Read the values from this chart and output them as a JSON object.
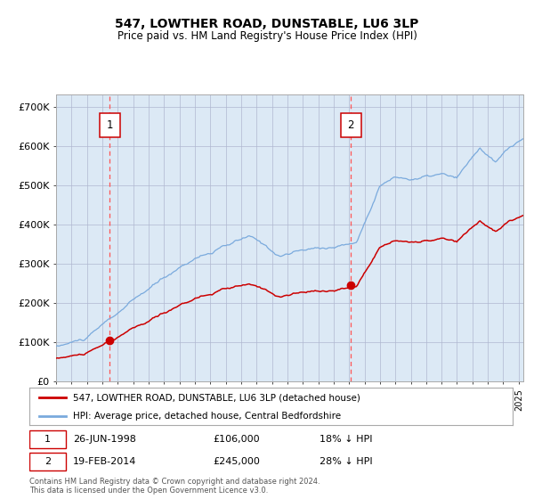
{
  "title": "547, LOWTHER ROAD, DUNSTABLE, LU6 3LP",
  "subtitle": "Price paid vs. HM Land Registry's House Price Index (HPI)",
  "ylabel_ticks": [
    "£0",
    "£100K",
    "£200K",
    "£300K",
    "£400K",
    "£500K",
    "£600K",
    "£700K"
  ],
  "ytick_values": [
    0,
    100000,
    200000,
    300000,
    400000,
    500000,
    600000,
    700000
  ],
  "ylim": [
    0,
    730000
  ],
  "xlim": [
    1995,
    2025.3
  ],
  "background_color": "#ffffff",
  "plot_bg_color": "#dce9f5",
  "grid_color": "#b0b8d0",
  "red_line_color": "#cc0000",
  "blue_line_color": "#7aaadd",
  "vline_color": "#ff5555",
  "sale1_x": 1998.48,
  "sale1_y": 106000,
  "sale2_x": 2014.12,
  "sale2_y": 245000,
  "legend_line1": "547, LOWTHER ROAD, DUNSTABLE, LU6 3LP (detached house)",
  "legend_line2": "HPI: Average price, detached house, Central Bedfordshire",
  "footer": "Contains HM Land Registry data © Crown copyright and database right 2024.\nThis data is licensed under the Open Government Licence v3.0.",
  "note1_date": "26-JUN-1998",
  "note1_price": "£106,000",
  "note1_hpi": "18% ↓ HPI",
  "note2_date": "19-FEB-2014",
  "note2_price": "£245,000",
  "note2_hpi": "28% ↓ HPI"
}
